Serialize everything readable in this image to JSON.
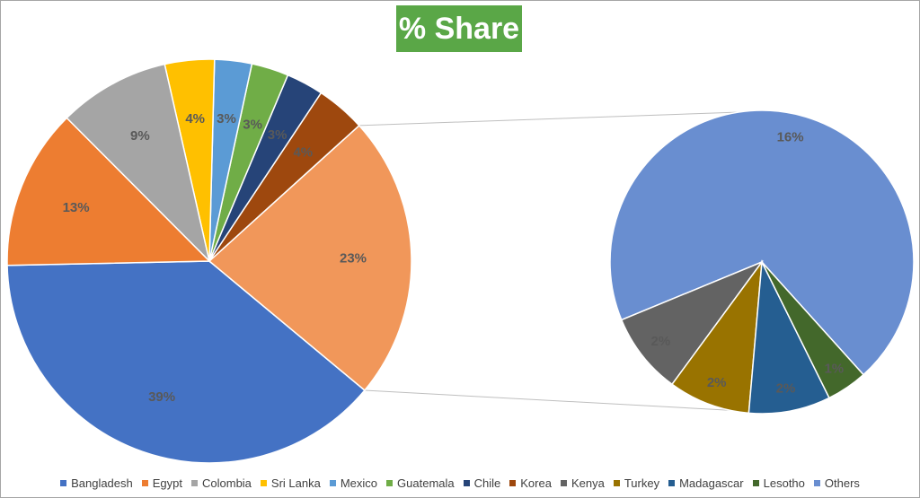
{
  "chart_data": {
    "type": "pie",
    "subtype": "pie-of-pie",
    "title": "% Share",
    "legend_position": "bottom",
    "main_pie": {
      "slices": [
        {
          "label": "Bangladesh",
          "value": 39,
          "display": "39%",
          "color": "#4472c4"
        },
        {
          "label": "Other",
          "value": 23,
          "display": "23%",
          "color": "#f1975a"
        },
        {
          "label": "Korea",
          "value": 4,
          "display": "4%",
          "color": "#9e480e"
        },
        {
          "label": "Chile",
          "value": 3,
          "display": "3%",
          "color": "#264478"
        },
        {
          "label": "Guatemala",
          "value": 3,
          "display": "3%",
          "color": "#70ad47"
        },
        {
          "label": "Mexico",
          "value": 3,
          "display": "3%",
          "color": "#5b9bd5"
        },
        {
          "label": "Sri Lanka",
          "value": 4,
          "display": "4%",
          "color": "#ffc000"
        },
        {
          "label": "Colombia",
          "value": 9,
          "display": "9%",
          "color": "#a5a5a5"
        },
        {
          "label": "Egypt",
          "value": 13,
          "display": "13%",
          "color": "#ed7d31"
        }
      ]
    },
    "secondary_pie": {
      "slices": [
        {
          "label": "Others",
          "value": 16,
          "display": "16%",
          "color": "#698ed0"
        },
        {
          "label": "Kenya",
          "value": 2,
          "display": "2%",
          "color": "#636363"
        },
        {
          "label": "Turkey",
          "value": 2,
          "display": "2%",
          "color": "#997300"
        },
        {
          "label": "Madagascar",
          "value": 2,
          "display": "2%",
          "color": "#255e91"
        },
        {
          "label": "Lesotho",
          "value": 1,
          "display": "1%",
          "color": "#43682b"
        }
      ]
    },
    "legend": [
      {
        "label": "Bangladesh",
        "color": "#4472c4"
      },
      {
        "label": "Egypt",
        "color": "#ed7d31"
      },
      {
        "label": "Colombia",
        "color": "#a5a5a5"
      },
      {
        "label": "Sri Lanka",
        "color": "#ffc000"
      },
      {
        "label": "Mexico",
        "color": "#5b9bd5"
      },
      {
        "label": "Guatemala",
        "color": "#70ad47"
      },
      {
        "label": "Chile",
        "color": "#264478"
      },
      {
        "label": "Korea",
        "color": "#9e480e"
      },
      {
        "label": "Kenya",
        "color": "#636363"
      },
      {
        "label": "Turkey",
        "color": "#997300"
      },
      {
        "label": "Madagascar",
        "color": "#255e91"
      },
      {
        "label": "Lesotho",
        "color": "#43682b"
      },
      {
        "label": "Others",
        "color": "#698ed0"
      }
    ],
    "colors": {
      "title_background": "#5aa747",
      "title_text": "#ffffff",
      "label_text": "#595959"
    }
  }
}
